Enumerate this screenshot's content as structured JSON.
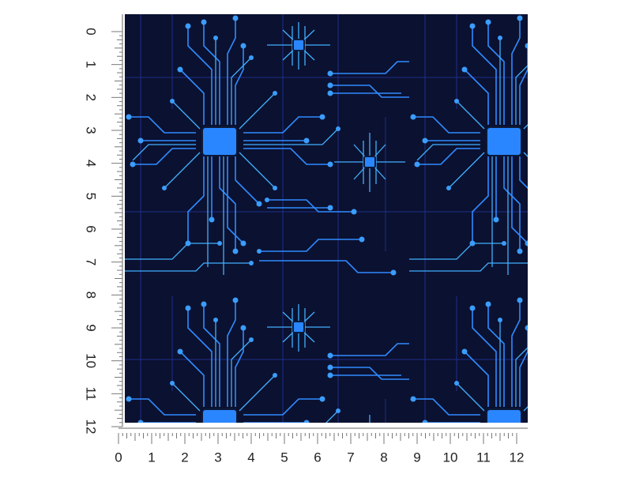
{
  "rulers": {
    "vertical": {
      "labels": [
        "0",
        "1",
        "2",
        "3",
        "4",
        "5",
        "6",
        "7",
        "8",
        "9",
        "10",
        "11",
        "12"
      ]
    },
    "horizontal": {
      "labels": [
        "0",
        "1",
        "2",
        "3",
        "4",
        "5",
        "6",
        "7",
        "8",
        "9",
        "10",
        "11",
        "12"
      ]
    }
  }
}
